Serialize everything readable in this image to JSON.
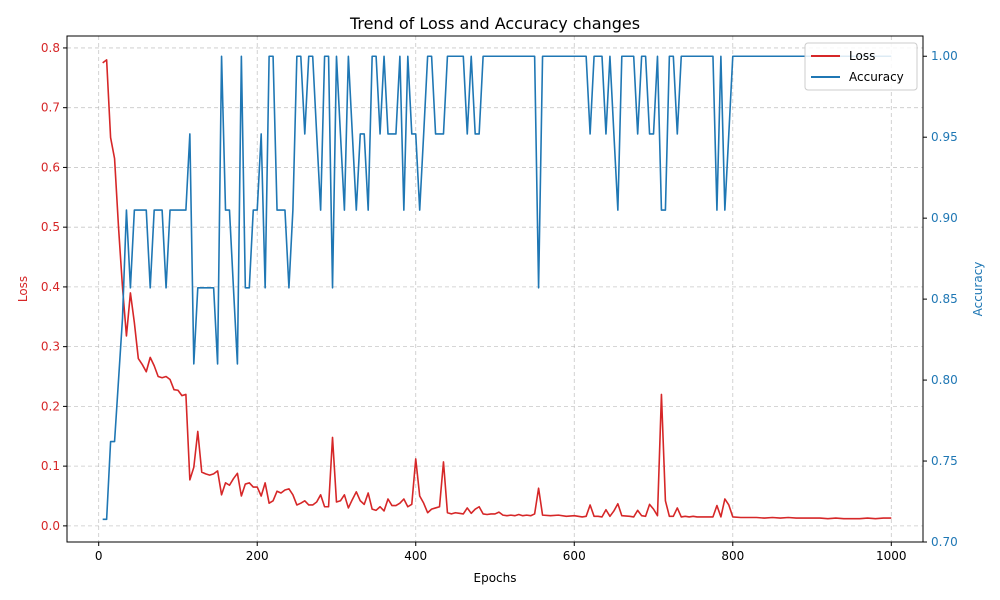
{
  "chart_data": {
    "type": "line",
    "title": "Trend of Loss and Accuracy changes",
    "xlabel": "Epochs",
    "ylabel_left": "Loss",
    "ylabel_right": "Accuracy",
    "xlim": [
      -40,
      1040
    ],
    "ylim_left": [
      -0.027,
      0.82
    ],
    "ylim_right": [
      0.7,
      1.0125
    ],
    "x_ticks": [
      0,
      200,
      400,
      600,
      800,
      1000
    ],
    "y_ticks_left": [
      0.0,
      0.1,
      0.2,
      0.3,
      0.4,
      0.5,
      0.6,
      0.7,
      0.8
    ],
    "y_ticks_right": [
      0.7,
      0.75,
      0.8,
      0.85,
      0.9,
      0.95,
      1.0
    ],
    "grid": true,
    "legend_position": "top-right",
    "colors": {
      "loss": "#d62728",
      "accuracy": "#1f77b4"
    },
    "series": [
      {
        "name": "Loss",
        "axis": "left",
        "points": [
          [
            5,
            0.775
          ],
          [
            10,
            0.78
          ],
          [
            15,
            0.65
          ],
          [
            20,
            0.615
          ],
          [
            25,
            0.5
          ],
          [
            30,
            0.4
          ],
          [
            35,
            0.318
          ],
          [
            40,
            0.39
          ],
          [
            45,
            0.34
          ],
          [
            50,
            0.28
          ],
          [
            55,
            0.27
          ],
          [
            60,
            0.258
          ],
          [
            65,
            0.282
          ],
          [
            70,
            0.268
          ],
          [
            75,
            0.25
          ],
          [
            80,
            0.248
          ],
          [
            85,
            0.25
          ],
          [
            90,
            0.245
          ],
          [
            95,
            0.228
          ],
          [
            100,
            0.227
          ],
          [
            105,
            0.218
          ],
          [
            110,
            0.22
          ],
          [
            115,
            0.077
          ],
          [
            120,
            0.098
          ],
          [
            125,
            0.158
          ],
          [
            130,
            0.09
          ],
          [
            135,
            0.087
          ],
          [
            140,
            0.085
          ],
          [
            145,
            0.087
          ],
          [
            150,
            0.092
          ],
          [
            155,
            0.052
          ],
          [
            160,
            0.072
          ],
          [
            165,
            0.068
          ],
          [
            170,
            0.079
          ],
          [
            175,
            0.088
          ],
          [
            180,
            0.05
          ],
          [
            185,
            0.07
          ],
          [
            190,
            0.072
          ],
          [
            195,
            0.065
          ],
          [
            200,
            0.065
          ],
          [
            205,
            0.05
          ],
          [
            210,
            0.072
          ],
          [
            215,
            0.038
          ],
          [
            220,
            0.042
          ],
          [
            225,
            0.058
          ],
          [
            230,
            0.055
          ],
          [
            235,
            0.06
          ],
          [
            240,
            0.062
          ],
          [
            245,
            0.052
          ],
          [
            250,
            0.035
          ],
          [
            255,
            0.038
          ],
          [
            260,
            0.042
          ],
          [
            265,
            0.035
          ],
          [
            270,
            0.035
          ],
          [
            275,
            0.04
          ],
          [
            280,
            0.052
          ],
          [
            285,
            0.032
          ],
          [
            290,
            0.032
          ],
          [
            295,
            0.148
          ],
          [
            300,
            0.04
          ],
          [
            305,
            0.042
          ],
          [
            310,
            0.052
          ],
          [
            315,
            0.03
          ],
          [
            320,
            0.044
          ],
          [
            325,
            0.057
          ],
          [
            330,
            0.042
          ],
          [
            335,
            0.036
          ],
          [
            340,
            0.055
          ],
          [
            345,
            0.028
          ],
          [
            350,
            0.026
          ],
          [
            355,
            0.032
          ],
          [
            360,
            0.025
          ],
          [
            365,
            0.045
          ],
          [
            370,
            0.034
          ],
          [
            375,
            0.034
          ],
          [
            380,
            0.038
          ],
          [
            385,
            0.045
          ],
          [
            390,
            0.032
          ],
          [
            395,
            0.036
          ],
          [
            400,
            0.112
          ],
          [
            405,
            0.05
          ],
          [
            410,
            0.038
          ],
          [
            415,
            0.022
          ],
          [
            420,
            0.028
          ],
          [
            425,
            0.03
          ],
          [
            430,
            0.032
          ],
          [
            435,
            0.107
          ],
          [
            440,
            0.022
          ],
          [
            445,
            0.02
          ],
          [
            450,
            0.022
          ],
          [
            455,
            0.021
          ],
          [
            460,
            0.02
          ],
          [
            465,
            0.03
          ],
          [
            470,
            0.021
          ],
          [
            475,
            0.028
          ],
          [
            480,
            0.032
          ],
          [
            485,
            0.02
          ],
          [
            490,
            0.019
          ],
          [
            495,
            0.02
          ],
          [
            500,
            0.02
          ],
          [
            505,
            0.023
          ],
          [
            510,
            0.018
          ],
          [
            515,
            0.017
          ],
          [
            520,
            0.018
          ],
          [
            525,
            0.017
          ],
          [
            530,
            0.019
          ],
          [
            535,
            0.017
          ],
          [
            540,
            0.018
          ],
          [
            545,
            0.017
          ],
          [
            550,
            0.02
          ],
          [
            555,
            0.063
          ],
          [
            560,
            0.018
          ],
          [
            570,
            0.017
          ],
          [
            580,
            0.018
          ],
          [
            590,
            0.016
          ],
          [
            600,
            0.017
          ],
          [
            610,
            0.015
          ],
          [
            615,
            0.016
          ],
          [
            620,
            0.035
          ],
          [
            625,
            0.016
          ],
          [
            630,
            0.016
          ],
          [
            635,
            0.015
          ],
          [
            640,
            0.027
          ],
          [
            645,
            0.016
          ],
          [
            650,
            0.025
          ],
          [
            655,
            0.037
          ],
          [
            660,
            0.017
          ],
          [
            670,
            0.016
          ],
          [
            675,
            0.015
          ],
          [
            680,
            0.026
          ],
          [
            685,
            0.017
          ],
          [
            690,
            0.016
          ],
          [
            695,
            0.036
          ],
          [
            700,
            0.028
          ],
          [
            705,
            0.017
          ],
          [
            710,
            0.22
          ],
          [
            715,
            0.042
          ],
          [
            720,
            0.016
          ],
          [
            725,
            0.016
          ],
          [
            730,
            0.03
          ],
          [
            735,
            0.015
          ],
          [
            740,
            0.016
          ],
          [
            745,
            0.015
          ],
          [
            750,
            0.016
          ],
          [
            755,
            0.015
          ],
          [
            760,
            0.015
          ],
          [
            770,
            0.015
          ],
          [
            775,
            0.015
          ],
          [
            780,
            0.034
          ],
          [
            785,
            0.015
          ],
          [
            790,
            0.045
          ],
          [
            795,
            0.035
          ],
          [
            800,
            0.015
          ],
          [
            810,
            0.014
          ],
          [
            820,
            0.014
          ],
          [
            830,
            0.014
          ],
          [
            840,
            0.013
          ],
          [
            850,
            0.014
          ],
          [
            860,
            0.013
          ],
          [
            870,
            0.014
          ],
          [
            880,
            0.013
          ],
          [
            890,
            0.013
          ],
          [
            900,
            0.013
          ],
          [
            910,
            0.013
          ],
          [
            920,
            0.012
          ],
          [
            930,
            0.013
          ],
          [
            940,
            0.012
          ],
          [
            950,
            0.012
          ],
          [
            960,
            0.012
          ],
          [
            970,
            0.013
          ],
          [
            980,
            0.012
          ],
          [
            990,
            0.013
          ],
          [
            1000,
            0.013
          ]
        ]
      },
      {
        "name": "Accuracy",
        "axis": "right",
        "points": [
          [
            5,
            0.714
          ],
          [
            10,
            0.714
          ],
          [
            15,
            0.762
          ],
          [
            20,
            0.762
          ],
          [
            25,
            0.8
          ],
          [
            30,
            0.838
          ],
          [
            35,
            0.905
          ],
          [
            40,
            0.857
          ],
          [
            45,
            0.905
          ],
          [
            55,
            0.905
          ],
          [
            60,
            0.905
          ],
          [
            65,
            0.857
          ],
          [
            70,
            0.905
          ],
          [
            80,
            0.905
          ],
          [
            85,
            0.857
          ],
          [
            90,
            0.905
          ],
          [
            110,
            0.905
          ],
          [
            115,
            0.952
          ],
          [
            120,
            0.81
          ],
          [
            125,
            0.857
          ],
          [
            130,
            0.857
          ],
          [
            145,
            0.857
          ],
          [
            150,
            0.81
          ],
          [
            155,
            1.0
          ],
          [
            160,
            0.905
          ],
          [
            165,
            0.905
          ],
          [
            170,
            0.857
          ],
          [
            175,
            0.81
          ],
          [
            180,
            1.0
          ],
          [
            185,
            0.857
          ],
          [
            190,
            0.857
          ],
          [
            195,
            0.905
          ],
          [
            200,
            0.905
          ],
          [
            205,
            0.952
          ],
          [
            210,
            0.857
          ],
          [
            215,
            1.0
          ],
          [
            220,
            1.0
          ],
          [
            225,
            0.905
          ],
          [
            235,
            0.905
          ],
          [
            240,
            0.857
          ],
          [
            245,
            0.905
          ],
          [
            250,
            1.0
          ],
          [
            255,
            1.0
          ],
          [
            260,
            0.952
          ],
          [
            265,
            1.0
          ],
          [
            270,
            1.0
          ],
          [
            275,
            0.952
          ],
          [
            280,
            0.905
          ],
          [
            285,
            1.0
          ],
          [
            290,
            1.0
          ],
          [
            295,
            0.857
          ],
          [
            300,
            1.0
          ],
          [
            305,
            0.952
          ],
          [
            310,
            0.905
          ],
          [
            315,
            1.0
          ],
          [
            320,
            0.952
          ],
          [
            325,
            0.905
          ],
          [
            330,
            0.952
          ],
          [
            335,
            0.952
          ],
          [
            340,
            0.905
          ],
          [
            345,
            1.0
          ],
          [
            350,
            1.0
          ],
          [
            355,
            0.952
          ],
          [
            360,
            1.0
          ],
          [
            365,
            0.952
          ],
          [
            370,
            0.952
          ],
          [
            375,
            0.952
          ],
          [
            380,
            1.0
          ],
          [
            385,
            0.905
          ],
          [
            390,
            1.0
          ],
          [
            395,
            0.952
          ],
          [
            400,
            0.952
          ],
          [
            405,
            0.905
          ],
          [
            410,
            0.952
          ],
          [
            415,
            1.0
          ],
          [
            420,
            1.0
          ],
          [
            425,
            0.952
          ],
          [
            430,
            0.952
          ],
          [
            435,
            0.952
          ],
          [
            440,
            1.0
          ],
          [
            460,
            1.0
          ],
          [
            465,
            0.952
          ],
          [
            470,
            1.0
          ],
          [
            475,
            0.952
          ],
          [
            480,
            0.952
          ],
          [
            485,
            1.0
          ],
          [
            550,
            1.0
          ],
          [
            555,
            0.857
          ],
          [
            560,
            1.0
          ],
          [
            615,
            1.0
          ],
          [
            620,
            0.952
          ],
          [
            625,
            1.0
          ],
          [
            635,
            1.0
          ],
          [
            640,
            0.952
          ],
          [
            645,
            1.0
          ],
          [
            650,
            0.952
          ],
          [
            655,
            0.905
          ],
          [
            660,
            1.0
          ],
          [
            675,
            1.0
          ],
          [
            680,
            0.952
          ],
          [
            685,
            1.0
          ],
          [
            690,
            1.0
          ],
          [
            695,
            0.952
          ],
          [
            700,
            0.952
          ],
          [
            705,
            1.0
          ],
          [
            710,
            0.905
          ],
          [
            715,
            0.905
          ],
          [
            720,
            1.0
          ],
          [
            725,
            1.0
          ],
          [
            730,
            0.952
          ],
          [
            735,
            1.0
          ],
          [
            775,
            1.0
          ],
          [
            780,
            0.905
          ],
          [
            785,
            1.0
          ],
          [
            790,
            0.905
          ],
          [
            795,
            0.952
          ],
          [
            800,
            1.0
          ],
          [
            1000,
            1.0
          ]
        ]
      }
    ]
  }
}
